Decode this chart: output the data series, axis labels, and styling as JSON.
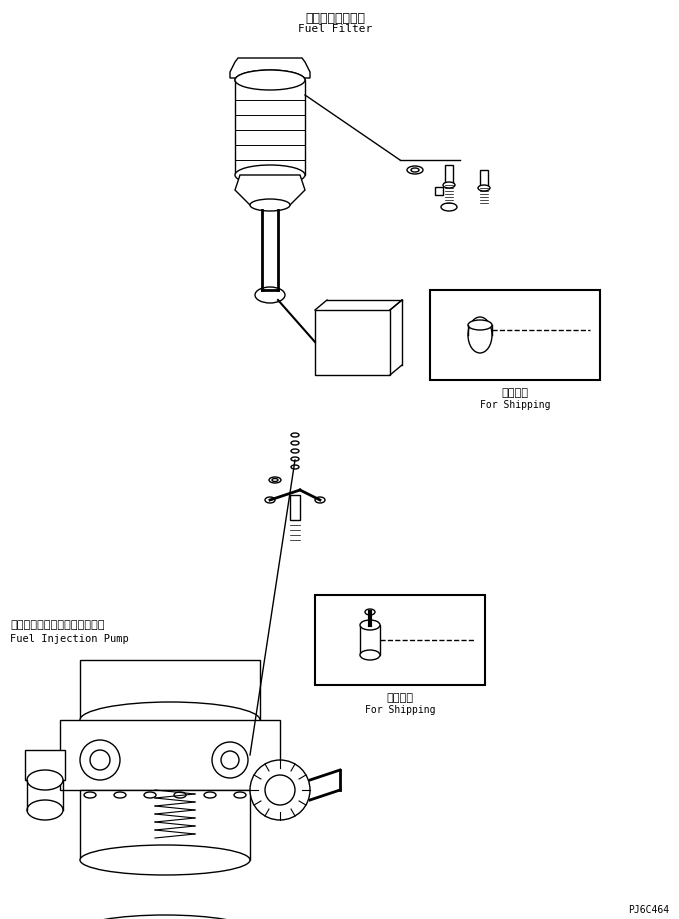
{
  "background_color": "#ffffff",
  "title_jp1": "フェエルフィルタ",
  "title_en1": "Fuel Filter",
  "title_jp2": "フエルインジェクションポンプ",
  "title_en2": "Fuel Injection Pump",
  "shipping_jp": "運携部品",
  "shipping_en": "For Shipping",
  "code": "PJ6C464",
  "line_color": "#000000",
  "line_width": 1.0
}
